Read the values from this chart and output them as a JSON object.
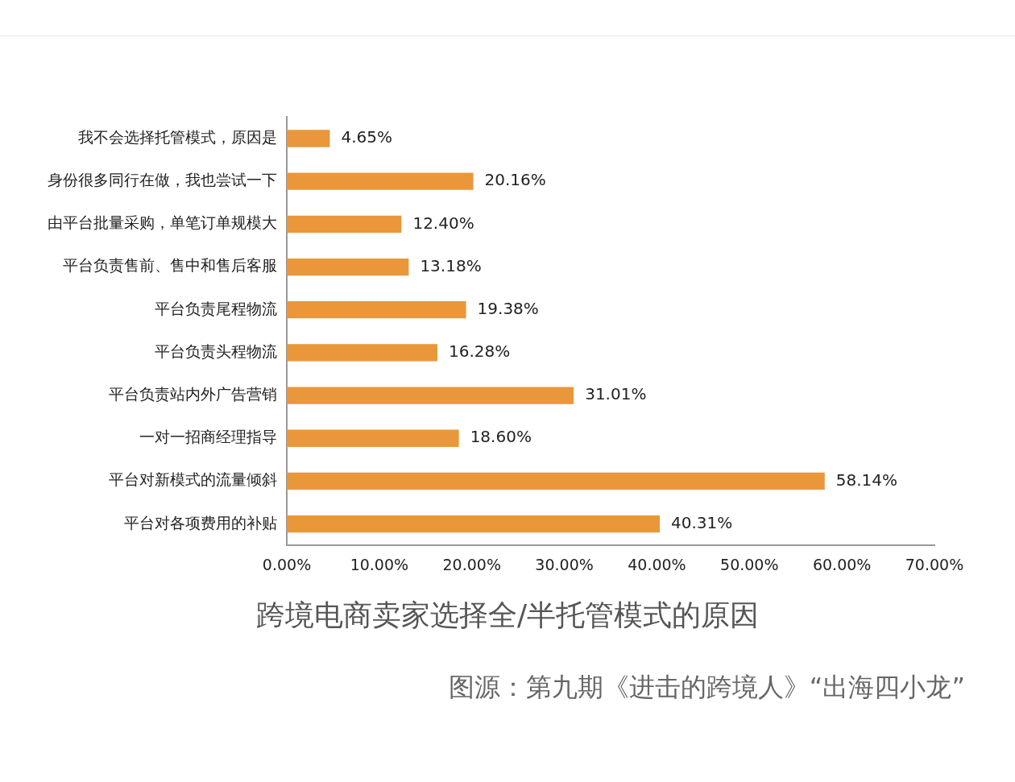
{
  "chart_data": {
    "type": "bar",
    "orientation": "horizontal",
    "title": "跨境电商卖家选择全/半托管模式的原因",
    "annotations": [
      "图源：第九期《进击的跨境人》“出海四小龙”"
    ],
    "categories": [
      "我不会选择托管模式，原因是",
      "身份很多同行在做，我也尝试一下",
      "由平台批量采购，单笔订单规模大",
      "平台负责售前、售中和售后客服",
      "平台负责尾程物流",
      "平台负责头程物流",
      "平台负责站内外广告营销",
      "一对一招商经理指导",
      "平台对新模式的流量倾斜",
      "平台对各项费用的补贴"
    ],
    "values": [
      4.65,
      20.16,
      12.4,
      13.18,
      19.38,
      16.28,
      31.01,
      18.6,
      58.14,
      40.31
    ],
    "value_labels": [
      "4.65%",
      "20.16%",
      "12.40%",
      "13.18%",
      "19.38%",
      "16.28%",
      "31.01%",
      "18.60%",
      "58.14%",
      "40.31%"
    ],
    "color": "#e9973a",
    "xlim": [
      0,
      70
    ],
    "xticks": [
      {
        "value": 0,
        "label": "0.00%"
      },
      {
        "value": 10,
        "label": "10.00%"
      },
      {
        "value": 20,
        "label": "20.00%"
      },
      {
        "value": 30,
        "label": "30.00%"
      },
      {
        "value": 40,
        "label": "40.00%"
      },
      {
        "value": 50,
        "label": "50.00%"
      },
      {
        "value": 60,
        "label": "60.00%"
      },
      {
        "value": 70,
        "label": "70.00%"
      }
    ],
    "grid": false,
    "legend": false
  }
}
